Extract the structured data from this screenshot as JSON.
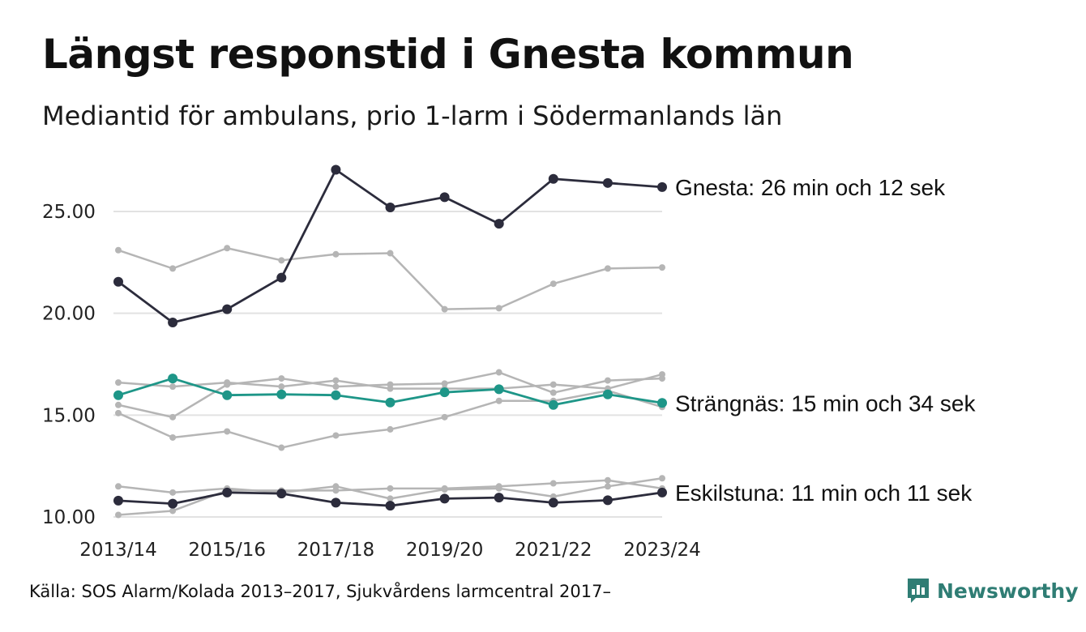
{
  "header": {
    "title": "Längst responstid i Gnesta kommun",
    "subtitle": "Mediantid för ambulans, prio 1-larm i Södermanlands län"
  },
  "footer": {
    "source": "Källa: SOS Alarm/Kolada 2013–2017, Sjukvårdens larmcentral 2017–",
    "brand": "Newsworthy"
  },
  "colors": {
    "highlight_dark": "#2c2c3c",
    "highlight_teal": "#1e9688",
    "background_series": "#b5b5b5",
    "grid": "#e2e2e2",
    "brand": "#2f7d74"
  },
  "icons": {
    "brand_logo": "newsworthy-logo-icon"
  },
  "chart_data": {
    "type": "line",
    "categories": [
      "2013/14",
      "2014/15",
      "2015/16",
      "2016/17",
      "2017/18",
      "2018/19",
      "2019/20",
      "2020/21",
      "2021/22",
      "2022/23",
      "2023/24"
    ],
    "x_tick_labels": [
      "2013/14",
      "2015/16",
      "2017/18",
      "2019/20",
      "2021/22",
      "2023/24"
    ],
    "y_ticks": [
      "10.00",
      "15.00",
      "20.00",
      "25.00"
    ],
    "ylim": [
      10,
      27
    ],
    "grid": true,
    "series": [
      {
        "name": "",
        "role": "background",
        "values": [
          23.1,
          22.2,
          23.2,
          22.6,
          22.9,
          22.95,
          20.2,
          20.25,
          21.45,
          22.2,
          22.25
        ]
      },
      {
        "name": "",
        "role": "background",
        "values": [
          16.6,
          16.4,
          16.6,
          16.4,
          16.7,
          16.3,
          16.3,
          16.3,
          16.5,
          16.3,
          17.0
        ]
      },
      {
        "name": "",
        "role": "background",
        "values": [
          15.5,
          14.9,
          16.5,
          16.8,
          16.4,
          16.5,
          16.55,
          17.1,
          16.1,
          16.7,
          16.8
        ]
      },
      {
        "name": "",
        "role": "background",
        "values": [
          15.1,
          13.9,
          14.2,
          13.4,
          14.0,
          14.3,
          14.9,
          15.7,
          15.7,
          16.2,
          15.4
        ]
      },
      {
        "name": "",
        "role": "background",
        "values": [
          11.5,
          11.2,
          11.4,
          11.2,
          11.5,
          10.9,
          11.35,
          11.4,
          11.0,
          11.5,
          11.9
        ]
      },
      {
        "name": "",
        "role": "background",
        "values": [
          10.1,
          10.3,
          11.3,
          11.3,
          11.3,
          11.4,
          11.4,
          11.5,
          11.65,
          11.8,
          11.4
        ]
      },
      {
        "name": "Gnesta: 26 min och 12 sek",
        "role": "highlight_dark",
        "values": [
          21.55,
          19.55,
          20.2,
          21.75,
          27.05,
          25.2,
          25.7,
          24.4,
          26.6,
          26.4,
          26.2
        ]
      },
      {
        "name": "Strängnäs: 15 min och 34 sek",
        "role": "highlight_teal",
        "values": [
          15.98,
          16.8,
          15.98,
          16.02,
          15.98,
          15.62,
          16.12,
          16.27,
          15.5,
          16.02,
          15.6
        ]
      },
      {
        "name": "Eskilstuna: 11 min och 11 sek",
        "role": "highlight_dark",
        "values": [
          10.8,
          10.65,
          11.2,
          11.15,
          10.7,
          10.55,
          10.9,
          10.95,
          10.7,
          10.82,
          11.2
        ]
      }
    ]
  }
}
